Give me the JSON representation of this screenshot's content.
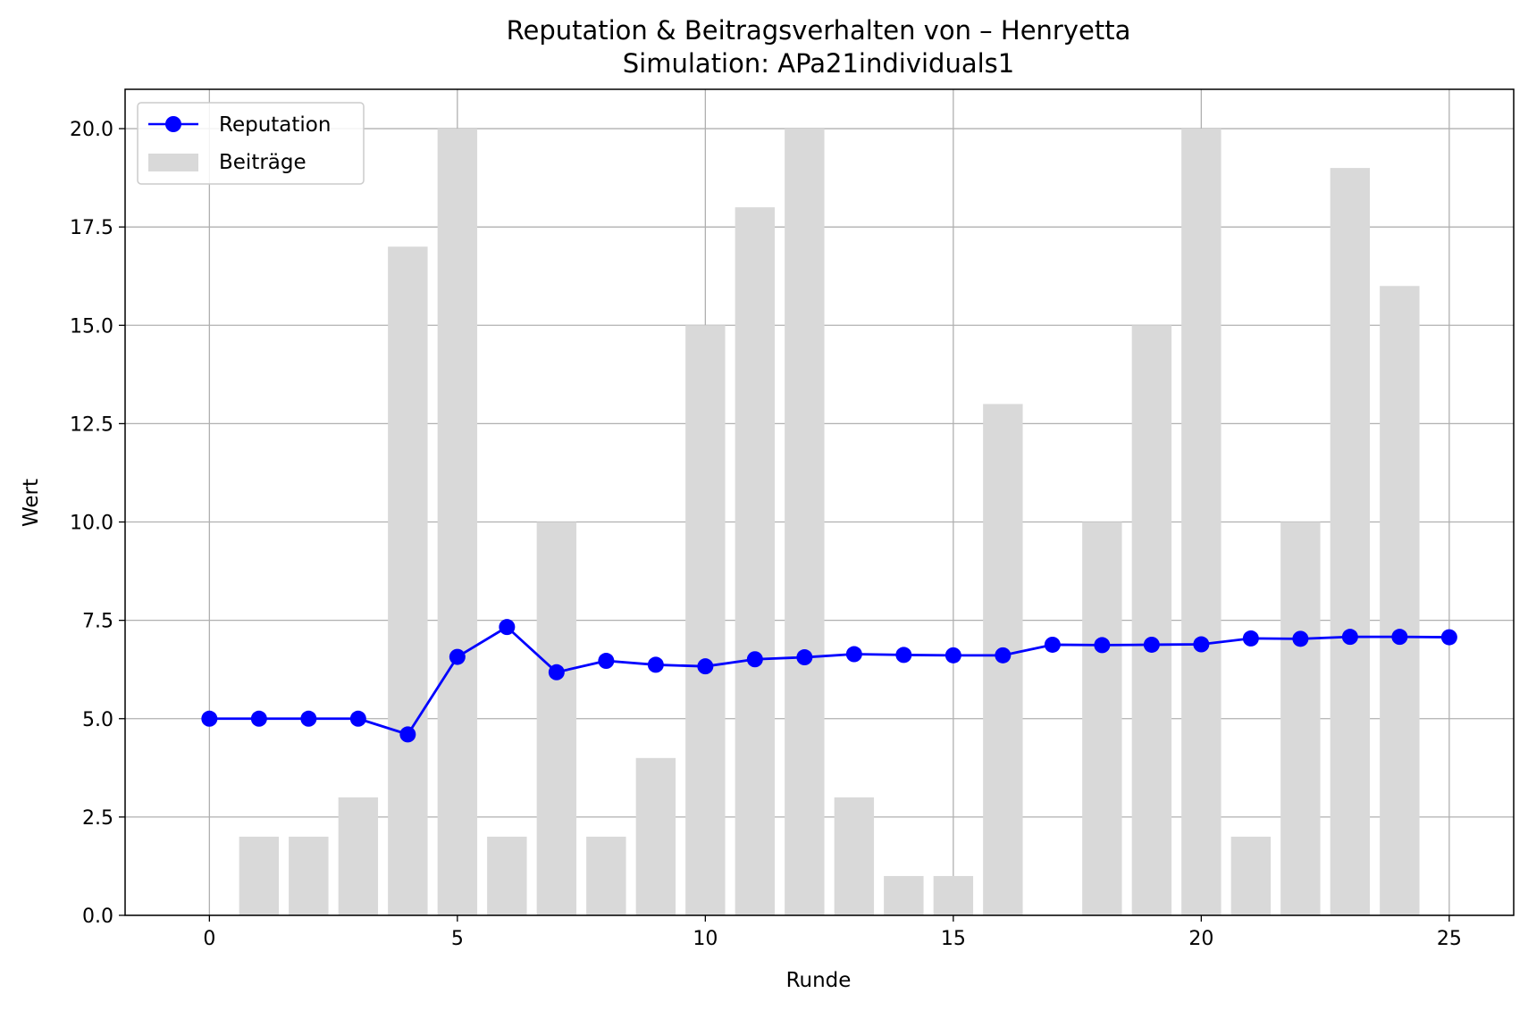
{
  "chart_data": {
    "type": "bar+line",
    "title": "Reputation & Beitragsverhalten von – Henryetta",
    "subtitle": "Simulation: APa21individuals1",
    "xlabel": "Runde",
    "ylabel": "Wert",
    "xlim": [
      -1.7,
      26.3
    ],
    "ylim": [
      0,
      21
    ],
    "xticks": [
      0,
      5,
      10,
      15,
      20,
      25
    ],
    "yticks": [
      0.0,
      2.5,
      5.0,
      7.5,
      10.0,
      12.5,
      15.0,
      17.5,
      20.0
    ],
    "grid": true,
    "legend_position": "top-left",
    "x": [
      0,
      1,
      2,
      3,
      4,
      5,
      6,
      7,
      8,
      9,
      10,
      11,
      12,
      13,
      14,
      15,
      16,
      17,
      18,
      19,
      20,
      21,
      22,
      23,
      24,
      25
    ],
    "series": [
      {
        "name": "Reputation",
        "kind": "line",
        "marker": "circle",
        "color": "#0000ff",
        "values": [
          5.0,
          5.0,
          5.0,
          5.0,
          4.6,
          6.57,
          7.33,
          6.18,
          6.47,
          6.37,
          6.33,
          6.51,
          6.56,
          6.64,
          6.62,
          6.61,
          6.61,
          6.88,
          6.87,
          6.88,
          6.89,
          7.04,
          7.03,
          7.08,
          7.08,
          7.07
        ]
      },
      {
        "name": "Beiträge",
        "kind": "bar",
        "color": "#d9d9d9",
        "bar_width": 0.8,
        "values": [
          0,
          2,
          2,
          3,
          17,
          20,
          2,
          10,
          2,
          4,
          15,
          18,
          20,
          3,
          1,
          1,
          13,
          0,
          10,
          15,
          20,
          2,
          10,
          19,
          16,
          0
        ]
      }
    ]
  }
}
